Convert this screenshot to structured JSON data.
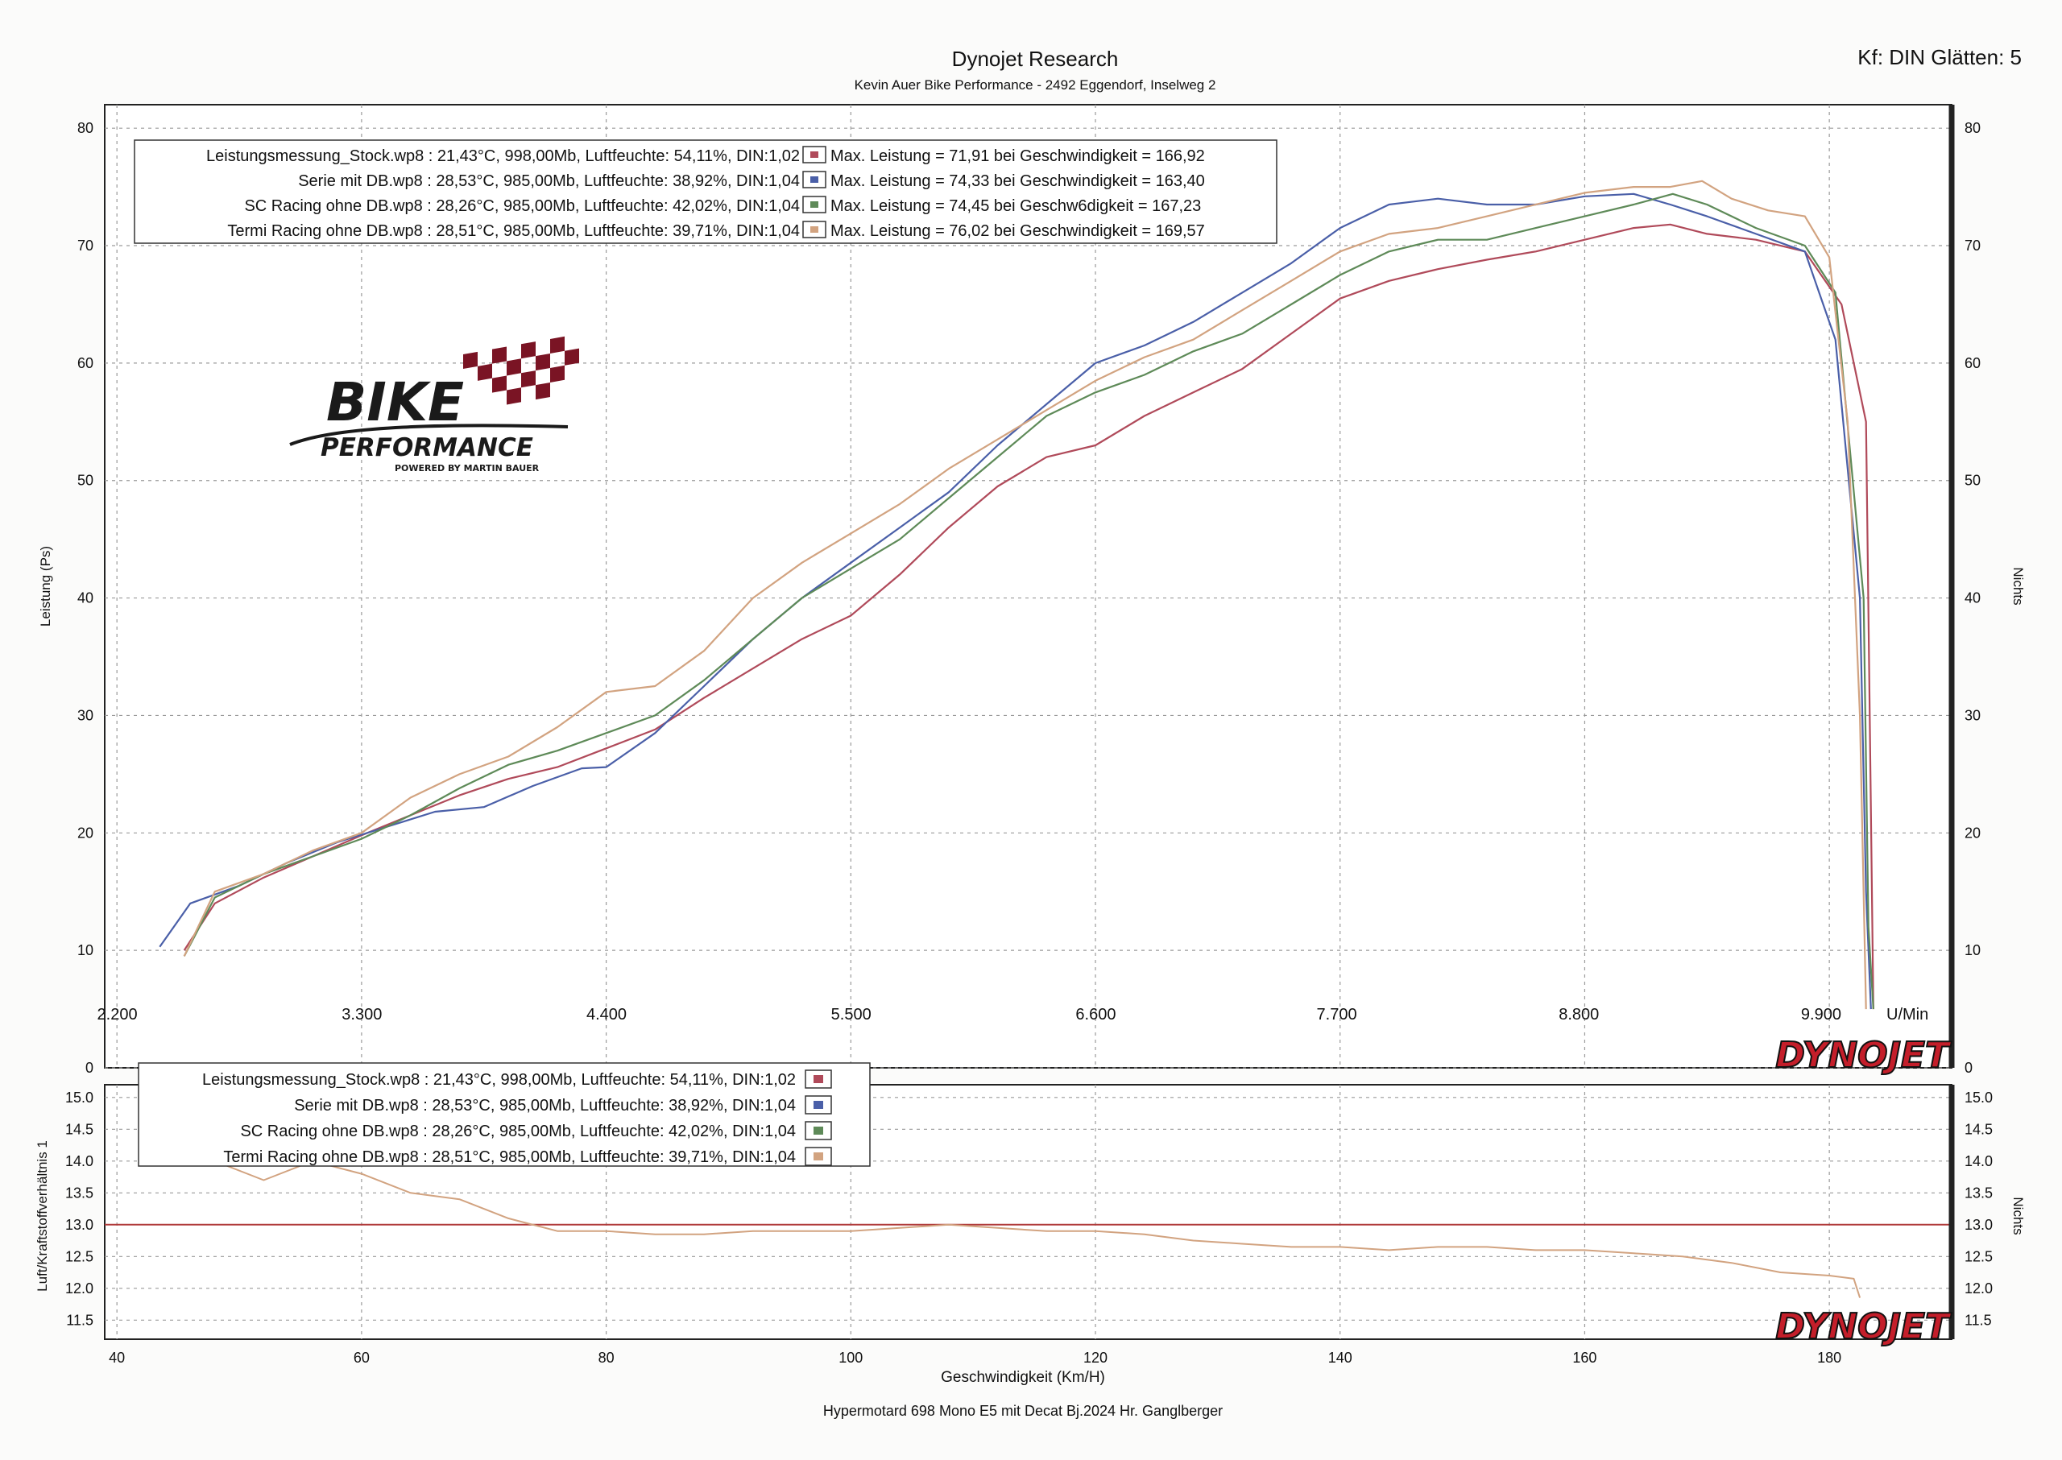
{
  "header": {
    "title": "Dynojet Research",
    "subtitle": "Kevin Auer Bike Performance - 2492 Eggendorf, Inselweg 2",
    "smoothing": "Kf: DIN Glätten: 5"
  },
  "footer": {
    "xlabel": "Geschwindigkeit (Km/H)",
    "model": "Hypermotard 698 Mono E5 mit Decat Bj.2024   Hr. Ganglberger"
  },
  "logo": {
    "brand": "BIKE",
    "line2": "PERFORMANCE",
    "tagline": "POWERED BY MARTIN BAUER"
  },
  "watermark": {
    "dynojet": "DYNOJET"
  },
  "colors": {
    "stock": "#b04a5a",
    "serie": "#4a5fa8",
    "sc": "#5e8a58",
    "termi": "#d2a380",
    "afr_ref": "#b03a3a",
    "grid": "#9a9a9a"
  },
  "legend_top": [
    {
      "text": "Leistungsmessung_Stock.wp8   : 21,43°C, 998,00Mb, Luftfeuchte: 54,11%, DIN:1,02",
      "max": "Max. Leistung = 71,91 bei Geschwindigkeit = 166,92"
    },
    {
      "text": "Serie mit DB.wp8   : 28,53°C, 985,00Mb, Luftfeuchte: 38,92%, DIN:1,04",
      "max": "Max. Leistung = 74,33 bei Geschwindigkeit = 163,40"
    },
    {
      "text": "SC Racing ohne DB.wp8   : 28,26°C, 985,00Mb, Luftfeuchte: 42,02%, DIN:1,04",
      "max": "Max. Leistung = 74,45 bei Geschw6digkeit = 167,23"
    },
    {
      "text": "Termi Racing ohne DB.wp8   : 28,51°C, 985,00Mb, Luftfeuchte: 39,71%, DIN:1,04",
      "max": "Max. Leistung = 76,02 bei Geschwindigkeit = 169,57"
    }
  ],
  "legend_bottom": [
    "Leistungsmessung_Stock.wp8   : 21,43°C, 998,00Mb, Luftfeuchte: 54,11%, DIN:1,02",
    "Serie mit DB.wp8   : 28,53°C, 985,00Mb, Luftfeuchte: 38,92%, DIN:1,04",
    "SC Racing ohne DB.wp8   : 28,26°C, 985,00Mb, Luftfeuchte: 42,02%, DIN:1,04",
    "Termi Racing ohne DB.wp8   : 28,51°C, 985,00Mb, Luftfeuchte: 39,71%, DIN:1,04"
  ],
  "chart_data": [
    {
      "type": "line",
      "ylabel": "Leistung (Ps)",
      "ylabel_right": "Nichts",
      "xlabel": "Geschwindigkeit (Km/H)",
      "xlim": [
        39,
        190
      ],
      "ylim": [
        0,
        82
      ],
      "y_ticks": [
        0,
        10,
        20,
        30,
        40,
        50,
        60,
        70,
        80
      ],
      "x_ticks": [
        40,
        60,
        80,
        100,
        120,
        140,
        160,
        180
      ],
      "rpm_label": "U/Min",
      "rpm_ticks": [
        {
          "label": "2.200",
          "x": 39.5
        },
        {
          "label": "3.300",
          "x": 59.5
        },
        {
          "label": "4.400",
          "x": 79.5
        },
        {
          "label": "5.500",
          "x": 99.5
        },
        {
          "label": "6.600",
          "x": 119.5
        },
        {
          "label": "7.700",
          "x": 139.2
        },
        {
          "label": "8.800",
          "x": 159.0
        },
        {
          "label": "9.900",
          "x": 178.8
        }
      ],
      "grid": true,
      "legend_position": "top-left",
      "series": [
        {
          "name": "Leistungsmessung_Stock.wp8",
          "color": "#b04a5a",
          "x": [
            45.5,
            48,
            52,
            56,
            60,
            64,
            68,
            72,
            76,
            80,
            84,
            88,
            92,
            96,
            100,
            104,
            108,
            112,
            116,
            120,
            124,
            128,
            132,
            136,
            140,
            144,
            148,
            152,
            156,
            160,
            164,
            167,
            170,
            174,
            178,
            181,
            183.0,
            183.3,
            183.6
          ],
          "y": [
            10,
            14,
            16.2,
            18,
            19.8,
            21.5,
            23.2,
            24.6,
            25.6,
            27.2,
            28.8,
            31.5,
            34,
            36.5,
            38.5,
            42,
            46,
            49.5,
            52,
            53,
            55.5,
            57.5,
            59.5,
            62.5,
            65.5,
            67,
            68,
            68.8,
            69.5,
            70.5,
            71.5,
            71.8,
            71,
            70.5,
            69.5,
            65,
            55,
            30,
            5
          ]
        },
        {
          "name": "Serie mit DB.wp8",
          "color": "#4a5fa8",
          "x": [
            43.5,
            46,
            50,
            54,
            58,
            62,
            66,
            70,
            74,
            78,
            80,
            84,
            88,
            92,
            96,
            100,
            104,
            108,
            112,
            116,
            120,
            124,
            128,
            132,
            136,
            140,
            144,
            148,
            152,
            156,
            160,
            164,
            167,
            170,
            174,
            178,
            180.5,
            182.5,
            183,
            183.4
          ],
          "y": [
            10.3,
            14,
            15.5,
            17.5,
            19.2,
            20.5,
            21.8,
            22.2,
            24,
            25.5,
            25.6,
            28.5,
            32.5,
            36.5,
            40,
            43,
            46,
            49,
            53,
            56.5,
            60,
            61.5,
            63.5,
            66,
            68.5,
            71.5,
            73.5,
            74,
            73.5,
            73.5,
            74.2,
            74.4,
            73.5,
            72.5,
            71,
            69.5,
            62,
            40,
            15,
            5
          ]
        },
        {
          "name": "SC Racing ohne DB.wp8",
          "color": "#5e8a58",
          "x": [
            45.5,
            48,
            52,
            56,
            60,
            64,
            68,
            72,
            76,
            80,
            84,
            88,
            92,
            96,
            100,
            104,
            108,
            112,
            116,
            120,
            124,
            128,
            132,
            136,
            140,
            144,
            148,
            152,
            156,
            160,
            164,
            167.2,
            170,
            174,
            178,
            180.5,
            182.8,
            183.2,
            183.6
          ],
          "y": [
            9.5,
            14.5,
            16.5,
            18,
            19.5,
            21.5,
            23.8,
            25.8,
            27,
            28.5,
            30,
            33,
            36.5,
            40,
            42.5,
            45,
            48.5,
            52,
            55.5,
            57.5,
            59,
            61,
            62.5,
            65,
            67.5,
            69.5,
            70.5,
            70.5,
            71.5,
            72.5,
            73.5,
            74.4,
            73.5,
            71.5,
            70,
            66,
            40,
            12,
            5
          ]
        },
        {
          "name": "Termi Racing ohne DB.wp8",
          "color": "#d2a380",
          "x": [
            45.5,
            48,
            52,
            56,
            60,
            64,
            68,
            72,
            76,
            80,
            84,
            88,
            92,
            96,
            100,
            104,
            108,
            112,
            116,
            120,
            124,
            128,
            132,
            136,
            140,
            144,
            148,
            152,
            156,
            160,
            164,
            167,
            169.6,
            172,
            175,
            178,
            180,
            181.5,
            182.5,
            183
          ],
          "y": [
            9.5,
            15,
            16.5,
            18.5,
            20,
            23,
            25,
            26.5,
            29,
            32,
            32.5,
            35.5,
            40,
            43,
            45.5,
            48,
            51,
            53.5,
            56,
            58.5,
            60.5,
            62,
            64.5,
            67,
            69.5,
            71,
            71.5,
            72.5,
            73.5,
            74.5,
            75,
            75,
            75.5,
            74,
            73,
            72.5,
            69,
            55,
            30,
            5
          ]
        }
      ]
    },
    {
      "type": "line",
      "ylabel": "Luft/Kraftstoffverhältnis 1",
      "ylabel_right": "Nichts",
      "xlabel": "Geschwindigkeit (Km/H)",
      "xlim": [
        39,
        190
      ],
      "ylim": [
        11.2,
        15.2
      ],
      "y_ticks": [
        11.5,
        12.0,
        12.5,
        13.0,
        13.5,
        14.0,
        14.5,
        15.0
      ],
      "x_ticks": [
        40,
        60,
        80,
        100,
        120,
        140,
        160,
        180
      ],
      "reference_line": 13.0,
      "grid": true,
      "legend_position": "top-left",
      "series": [
        {
          "name": "Termi Racing ohne DB.wp8",
          "color": "#d2a380",
          "x": [
            48,
            52,
            56,
            60,
            64,
            68,
            72,
            76,
            80,
            84,
            88,
            92,
            96,
            100,
            104,
            108,
            112,
            116,
            120,
            124,
            128,
            132,
            136,
            140,
            144,
            148,
            152,
            156,
            160,
            164,
            168,
            172,
            176,
            180,
            182,
            182.5
          ],
          "y": [
            14.0,
            13.7,
            14.0,
            13.8,
            13.5,
            13.4,
            13.1,
            12.9,
            12.9,
            12.85,
            12.85,
            12.9,
            12.9,
            12.9,
            12.95,
            13.0,
            12.95,
            12.9,
            12.9,
            12.85,
            12.75,
            12.7,
            12.65,
            12.65,
            12.6,
            12.65,
            12.65,
            12.6,
            12.6,
            12.55,
            12.5,
            12.4,
            12.25,
            12.2,
            12.15,
            11.85
          ]
        }
      ]
    }
  ]
}
